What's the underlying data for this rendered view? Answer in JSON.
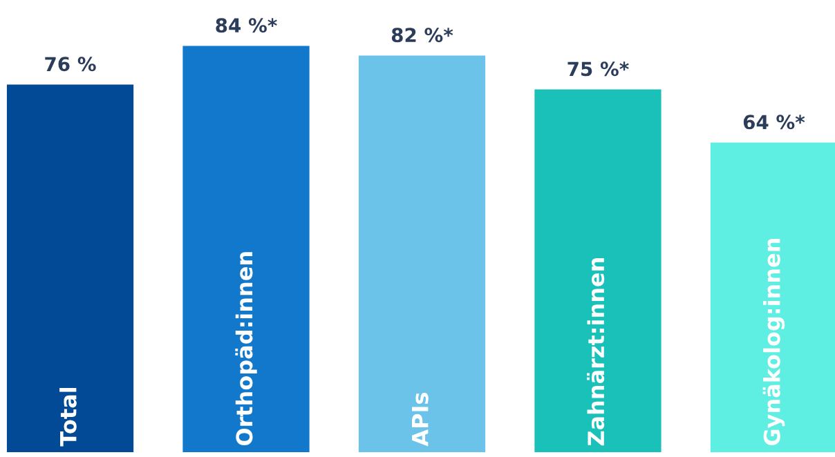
{
  "chart_data": {
    "type": "bar",
    "categories": [
      "Total",
      "Orthopäd:innen",
      "APIs",
      "Zahnärzt:innen",
      "Gynäkolog:innen"
    ],
    "values": [
      76,
      84,
      82,
      75,
      64
    ],
    "value_labels": [
      "76 %",
      "84 %*",
      "82 %*",
      "75 %*",
      "64 %*"
    ],
    "colors": [
      "#034a96",
      "#1178cc",
      "#6cc3ea",
      "#19c1b9",
      "#5feee2"
    ],
    "tick_labels": false
  }
}
